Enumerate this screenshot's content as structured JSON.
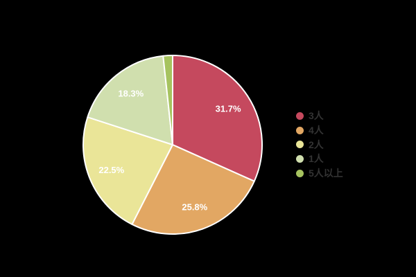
{
  "chart_data": {
    "type": "pie",
    "categories": [
      "3人",
      "4人",
      "2人",
      "1人",
      "5人以上"
    ],
    "values": [
      31.7,
      25.8,
      22.5,
      18.3,
      1.7
    ],
    "slice_labels": [
      "31.7%",
      "25.8%",
      "22.5%",
      "18.3%",
      ""
    ],
    "colors": [
      "#c5495e",
      "#e2a763",
      "#eae598",
      "#d0dfae",
      "#a6c35f"
    ],
    "title": "",
    "legend_position": "right",
    "legend_entries": [
      "3人",
      "4人",
      "2人",
      "1人",
      "5人以上"
    ],
    "start_angle": "top",
    "direction": "clockwise",
    "slice_border_color": "#ffffff",
    "slice_label_color": "#ffffff",
    "legend_text_color": "#333333",
    "background_color": "#000000"
  }
}
